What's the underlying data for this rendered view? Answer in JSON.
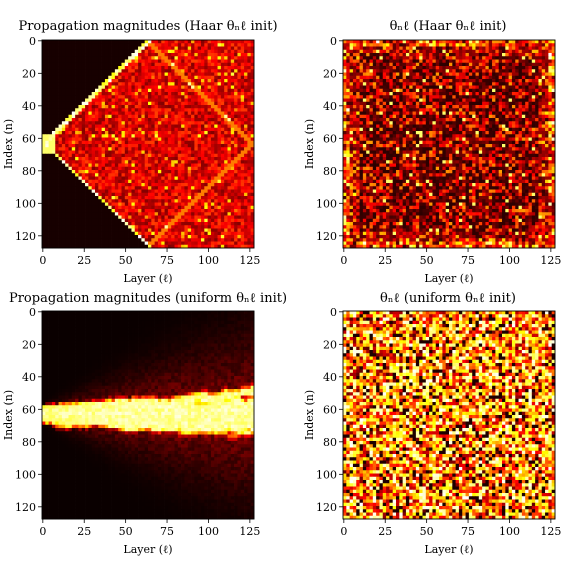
{
  "chart_data": [
    {
      "type": "heatmap",
      "title": "Propagation magnitudes (Haar θₙℓ init)",
      "xlabel": "Layer (ℓ)",
      "ylabel": "Index (n)",
      "xlim": [
        0,
        127
      ],
      "ylim": [
        127,
        0
      ],
      "xticks": [
        "0",
        "25",
        "50",
        "75",
        "100",
        "125"
      ],
      "yticks": [
        "0",
        "20",
        "40",
        "60",
        "80",
        "100",
        "120"
      ],
      "colormap": "hot",
      "pattern": "diamond",
      "source_index": 63
    },
    {
      "type": "heatmap",
      "title": "θₙℓ (Haar θₙℓ init)",
      "xlabel": "Layer (ℓ)",
      "ylabel": "Index (n)",
      "xlim": [
        0,
        127
      ],
      "ylim": [
        127,
        0
      ],
      "xticks": [
        "0",
        "25",
        "50",
        "75",
        "100",
        "125"
      ],
      "yticks": [
        "0",
        "20",
        "40",
        "60",
        "80",
        "100",
        "120"
      ],
      "colormap": "hot",
      "pattern": "noise-dark-bright-edges"
    },
    {
      "type": "heatmap",
      "title": "Propagation magnitudes (uniform θₙℓ init)",
      "xlabel": "Layer (ℓ)",
      "ylabel": "Index (n)",
      "xlim": [
        0,
        127
      ],
      "ylim": [
        127,
        0
      ],
      "xticks": [
        "0",
        "25",
        "50",
        "75",
        "100",
        "125"
      ],
      "yticks": [
        "0",
        "20",
        "40",
        "60",
        "80",
        "100",
        "120"
      ],
      "colormap": "hot",
      "pattern": "diffusive-spread",
      "source_index": 63
    },
    {
      "type": "heatmap",
      "title": "θₙℓ (uniform θₙℓ init)",
      "xlabel": "Layer (ℓ)",
      "ylabel": "Index (n)",
      "xlim": [
        0,
        127
      ],
      "ylim": [
        127,
        0
      ],
      "xticks": [
        "0",
        "25",
        "50",
        "75",
        "100",
        "125"
      ],
      "yticks": [
        "0",
        "20",
        "40",
        "60",
        "80",
        "100",
        "120"
      ],
      "colormap": "hot",
      "pattern": "noise-bright"
    }
  ]
}
